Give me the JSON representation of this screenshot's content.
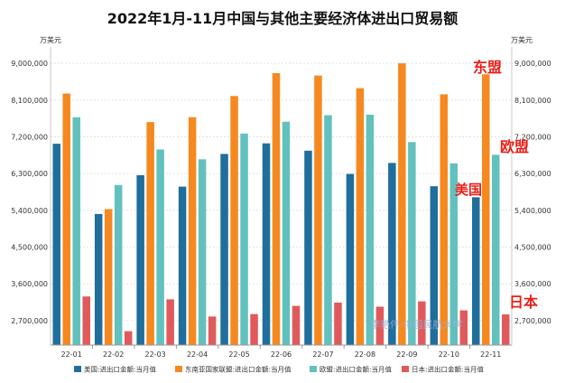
{
  "chart_data": {
    "type": "bar",
    "title": "2022年1月-11月中国与其他主要经济体进出口贸易额",
    "unit_left": "万美元",
    "unit_right": "万美元",
    "categories": [
      "22-01",
      "22-02",
      "22-03",
      "22-04",
      "22-05",
      "22-06",
      "22-07",
      "22-08",
      "22-09",
      "22-10",
      "22-11"
    ],
    "yticks": [
      "2,700,000",
      "3,600,000",
      "4,500,000",
      "5,400,000",
      "6,300,000",
      "7,200,000",
      "8,100,000",
      "9,000,000"
    ],
    "ylim": [
      2100000,
      9400000
    ],
    "grid": true,
    "legend_position": "bottom",
    "series": [
      {
        "name": "美国:进出口金额:当月值",
        "color": "#1f6e9c",
        "values": [
          7030000,
          5310000,
          6260000,
          5980000,
          6780000,
          7040000,
          6860000,
          6290000,
          6560000,
          5990000,
          5720000
        ]
      },
      {
        "name": "东南亚国家联盟:进出口金额:当月值",
        "color": "#f5891f",
        "values": [
          8260000,
          5430000,
          7560000,
          7680000,
          8200000,
          8760000,
          8700000,
          8390000,
          9000000,
          8240000,
          8730000
        ]
      },
      {
        "name": "欧盟:进出口金额:当月值",
        "color": "#62c1be",
        "values": [
          7680000,
          6020000,
          6890000,
          6650000,
          7280000,
          7570000,
          7730000,
          7740000,
          7070000,
          6550000,
          6760000
        ]
      },
      {
        "name": "日本:进出口金额:当月值",
        "color": "#e05a5c",
        "values": [
          3290000,
          2440000,
          3220000,
          2800000,
          2860000,
          3060000,
          3140000,
          3040000,
          3170000,
          2950000,
          2850000
        ]
      }
    ],
    "annotations": [
      {
        "text": "东盟"
      },
      {
        "text": "欧盟"
      },
      {
        "text": "美国"
      },
      {
        "text": "日本"
      }
    ],
    "watermark": "李艳伟·中国民航大学"
  }
}
